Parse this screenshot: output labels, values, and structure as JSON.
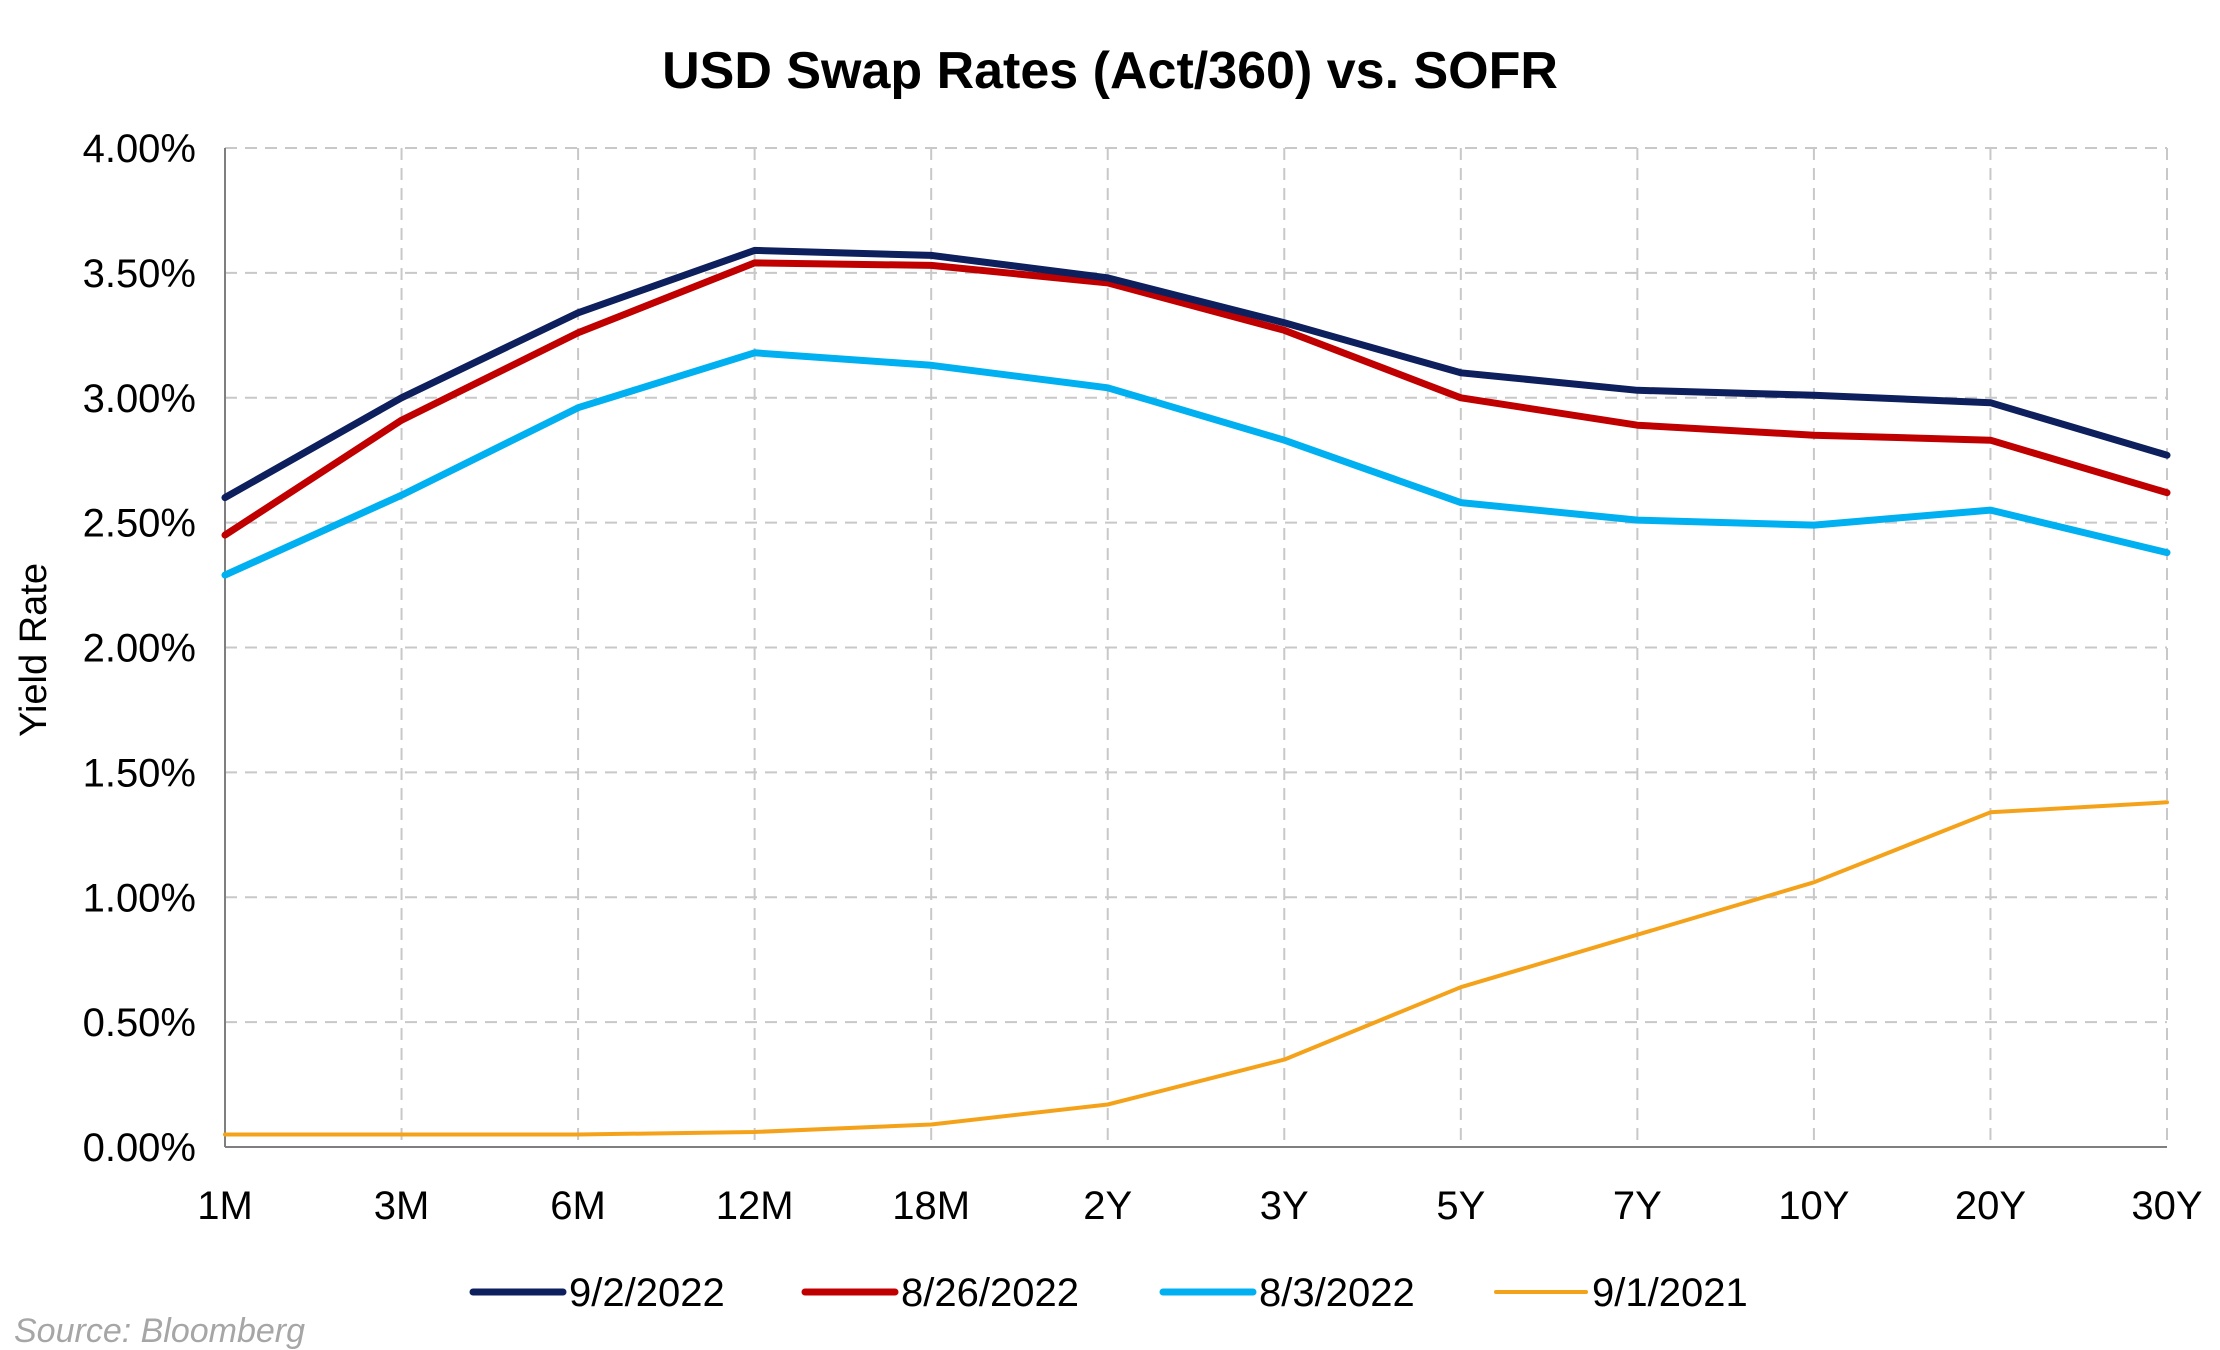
{
  "chart_data": {
    "type": "line",
    "title": "USD Swap Rates (Act/360) vs. SOFR",
    "xlabel": "",
    "ylabel": "Yield Rate",
    "categories": [
      "1M",
      "3M",
      "6M",
      "12M",
      "18M",
      "2Y",
      "3Y",
      "5Y",
      "7Y",
      "10Y",
      "20Y",
      "30Y"
    ],
    "ylim": [
      0,
      4
    ],
    "yticks": [
      "0.00%",
      "0.50%",
      "1.00%",
      "1.50%",
      "2.00%",
      "2.50%",
      "3.00%",
      "3.50%",
      "4.00%"
    ],
    "grid": true,
    "legend_position": "bottom",
    "series": [
      {
        "name": "9/2/2022",
        "color": "#0d1f5c",
        "values": [
          2.6,
          3.0,
          3.34,
          3.59,
          3.57,
          3.48,
          3.3,
          3.1,
          3.03,
          3.01,
          2.98,
          2.77
        ]
      },
      {
        "name": "8/26/2022",
        "color": "#c00000",
        "values": [
          2.45,
          2.91,
          3.26,
          3.54,
          3.53,
          3.46,
          3.27,
          3.0,
          2.89,
          2.85,
          2.83,
          2.62
        ]
      },
      {
        "name": "8/3/2022",
        "color": "#00b0f0",
        "values": [
          2.29,
          2.61,
          2.96,
          3.18,
          3.13,
          3.04,
          2.83,
          2.58,
          2.51,
          2.49,
          2.55,
          2.38
        ]
      },
      {
        "name": "9/1/2021",
        "color": "#f5a21b",
        "values": [
          0.05,
          0.05,
          0.05,
          0.06,
          0.09,
          0.17,
          0.35,
          0.64,
          0.85,
          1.06,
          1.34,
          1.38
        ]
      }
    ]
  },
  "source": "Source: Bloomberg"
}
